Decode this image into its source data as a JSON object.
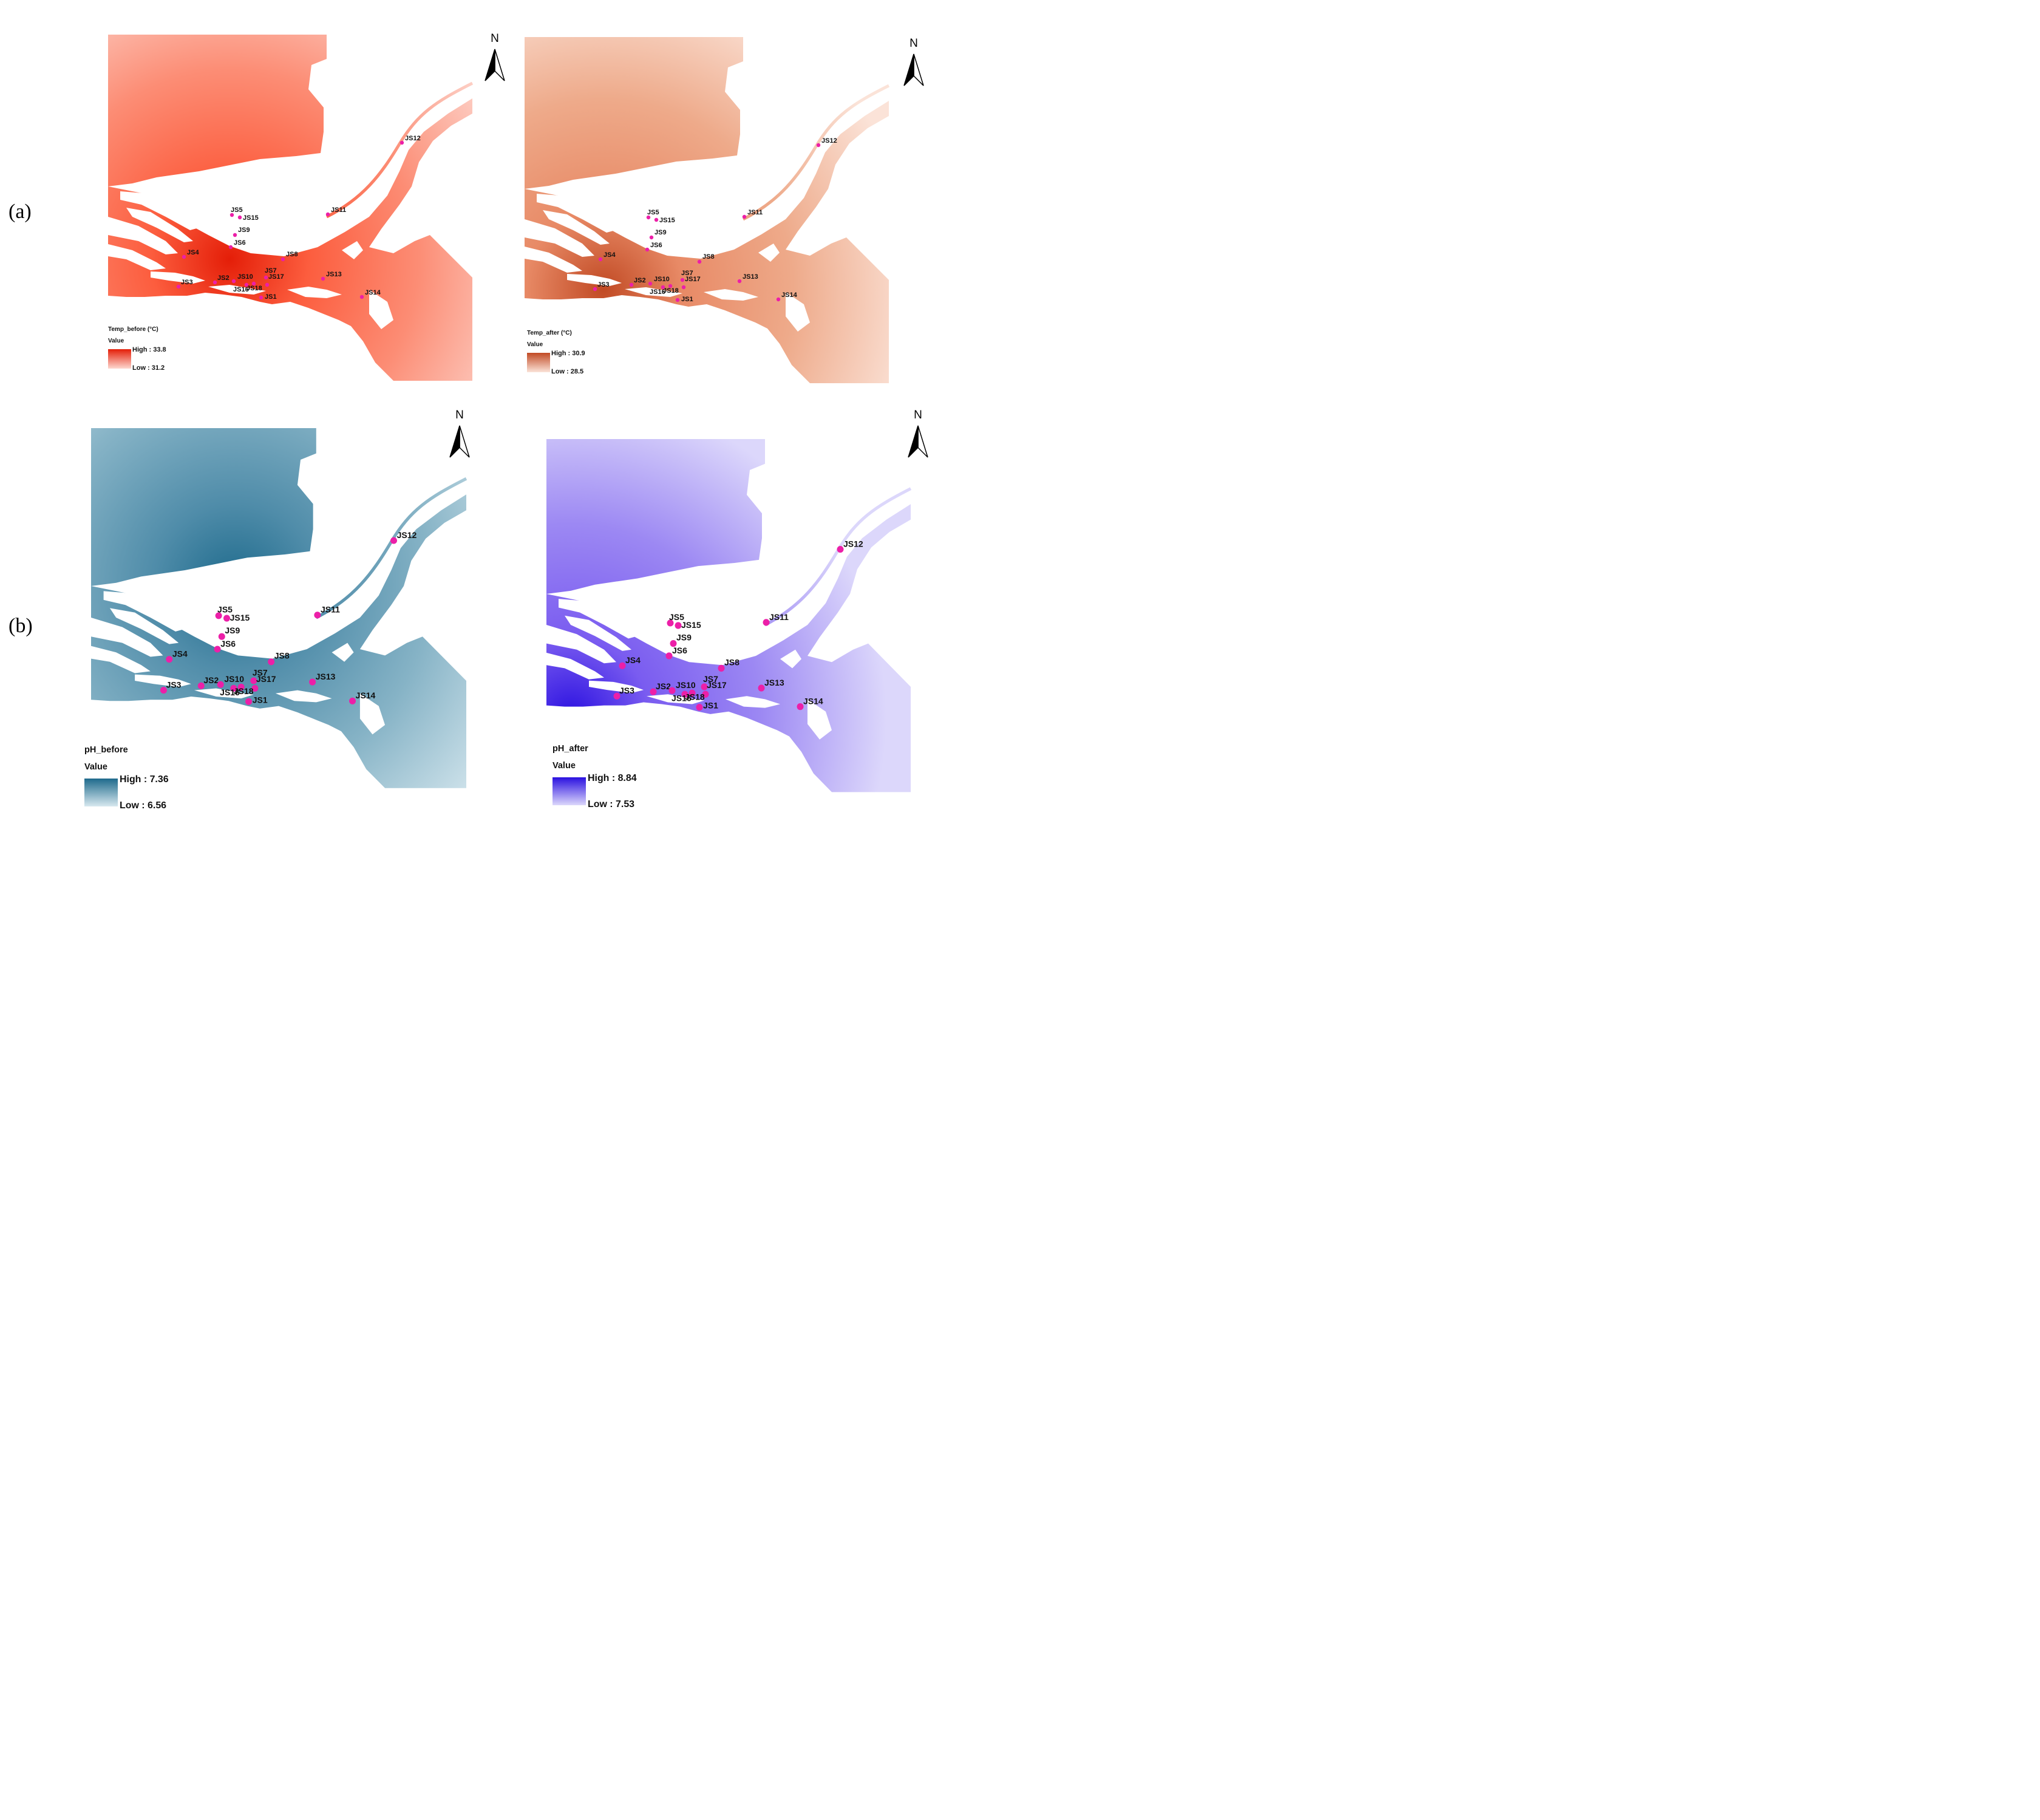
{
  "rows": [
    {
      "label": "(a)"
    },
    {
      "label": "(b)"
    }
  ],
  "panels": [
    {
      "id": "temp-before",
      "legend": {
        "title": "Temp_before (°C)",
        "value_label": "Value",
        "high": "High : 33.8",
        "low": "Low : 31.2"
      },
      "colors": {
        "base": "#fc5d3e",
        "hot": "#e41e08",
        "light": "#fdd8d0",
        "mid": "#fc8d75"
      },
      "north": "N"
    },
    {
      "id": "temp-after",
      "legend": {
        "title": "Temp_after (°C)",
        "value_label": "Value",
        "high": "High : 30.9",
        "low": "Low : 28.5"
      },
      "colors": {
        "base": "#e88a66",
        "hot": "#c14a24",
        "light": "#fbe3d8",
        "mid": "#eeaa8a"
      },
      "north": "N"
    },
    {
      "id": "ph-before",
      "legend": {
        "title": "pH_before",
        "value_label": "Value",
        "high": "High : 7.36",
        "low": "Low : 6.56"
      },
      "colors": {
        "base": "#4f8ca9",
        "hot": "#1e6a8c",
        "light": "#d7e8ef",
        "mid": "#86b3c6"
      },
      "north": "N"
    },
    {
      "id": "ph-after",
      "legend": {
        "title": "pH_after",
        "value_label": "Value",
        "high": "High : 8.84",
        "low": "Low : 7.53"
      },
      "colors": {
        "base": "#7a5cf0",
        "hot": "#2a10e0",
        "light": "#dcd7fb",
        "mid": "#9c88f3"
      },
      "north": "N"
    }
  ],
  "sites": [
    "JS1",
    "JS2",
    "JS3",
    "JS4",
    "JS5",
    "JS6",
    "JS7",
    "JS8",
    "JS9",
    "JS10",
    "JS11",
    "JS12",
    "JS13",
    "JS14",
    "JS15",
    "JS16",
    "JS17",
    "JS18"
  ],
  "marker_color": "#ec1fa8"
}
